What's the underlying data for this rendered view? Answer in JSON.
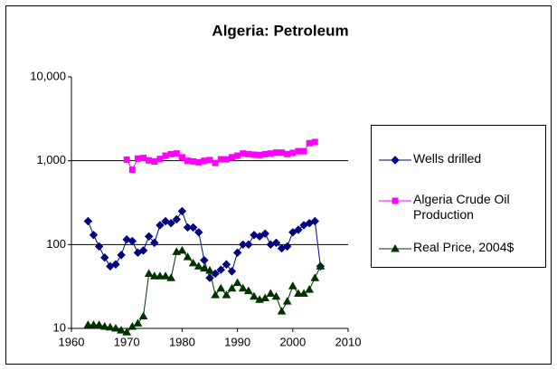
{
  "chart_data": {
    "type": "line",
    "title": "Algeria: Petroleum",
    "xlim": [
      1960,
      2010
    ],
    "xticks": [
      1960,
      1970,
      1980,
      1990,
      2000,
      2010
    ],
    "ylim": [
      10,
      10000
    ],
    "log_scale": true,
    "yticks": [
      10,
      100,
      {
        "value": 1000,
        "label": "1,000"
      },
      {
        "value": 10000,
        "label": "10,000"
      }
    ],
    "grid": true,
    "legend": "right",
    "series": [
      {
        "name": "Wells drilled",
        "color": "#000080",
        "marker": "diamond",
        "x": [
          1963,
          1964,
          1965,
          1966,
          1967,
          1968,
          1969,
          1970,
          1971,
          1972,
          1973,
          1974,
          1975,
          1976,
          1977,
          1978,
          1979,
          1980,
          1981,
          1982,
          1983,
          1984,
          1985,
          1986,
          1987,
          1988,
          1989,
          1990,
          1991,
          1992,
          1993,
          1994,
          1995,
          1996,
          1997,
          1998,
          1999,
          2000,
          2001,
          2002,
          2003,
          2004,
          2005
        ],
        "values": [
          190,
          130,
          95,
          70,
          55,
          58,
          75,
          115,
          110,
          80,
          85,
          125,
          105,
          170,
          190,
          180,
          200,
          250,
          160,
          160,
          140,
          65,
          40,
          45,
          50,
          58,
          48,
          80,
          100,
          100,
          130,
          125,
          135,
          100,
          105,
          90,
          95,
          140,
          150,
          170,
          180,
          190,
          55
        ]
      },
      {
        "name": "Algeria Crude Oil Production",
        "color": "#ff00ff",
        "marker": "square",
        "x": [
          1970,
          1971,
          1972,
          1973,
          1974,
          1975,
          1976,
          1977,
          1978,
          1979,
          1980,
          1981,
          1982,
          1983,
          1984,
          1985,
          1986,
          1987,
          1988,
          1989,
          1990,
          1991,
          1992,
          1993,
          1994,
          1995,
          1996,
          1997,
          1998,
          1999,
          2000,
          2001,
          2002,
          2003,
          2004
        ],
        "values": [
          1030,
          780,
          1060,
          1080,
          1010,
          980,
          1050,
          1150,
          1200,
          1220,
          1100,
          1000,
          980,
          960,
          1000,
          1020,
          940,
          1040,
          1040,
          1100,
          1150,
          1220,
          1200,
          1180,
          1170,
          1200,
          1220,
          1250,
          1250,
          1200,
          1240,
          1300,
          1300,
          1620,
          1670
        ]
      },
      {
        "name": "Real Price, 2004$",
        "color": "#003300",
        "marker": "triangle",
        "x": [
          1963,
          1964,
          1965,
          1966,
          1967,
          1968,
          1969,
          1970,
          1971,
          1972,
          1973,
          1974,
          1975,
          1976,
          1977,
          1978,
          1979,
          1980,
          1981,
          1982,
          1983,
          1984,
          1985,
          1986,
          1987,
          1988,
          1989,
          1990,
          1991,
          1992,
          1993,
          1994,
          1995,
          1996,
          1997,
          1998,
          1999,
          2000,
          2001,
          2002,
          2003,
          2004,
          2005
        ],
        "values": [
          11,
          11,
          11,
          10.5,
          10.3,
          10,
          9.5,
          9,
          10.5,
          11.5,
          14,
          45,
          42,
          42,
          42,
          40,
          82,
          85,
          71,
          60,
          55,
          52,
          49,
          25,
          30,
          25,
          30,
          35,
          30,
          28,
          24,
          22,
          23,
          26,
          24,
          16,
          21,
          32,
          26,
          26,
          29,
          40,
          55
        ]
      }
    ]
  }
}
